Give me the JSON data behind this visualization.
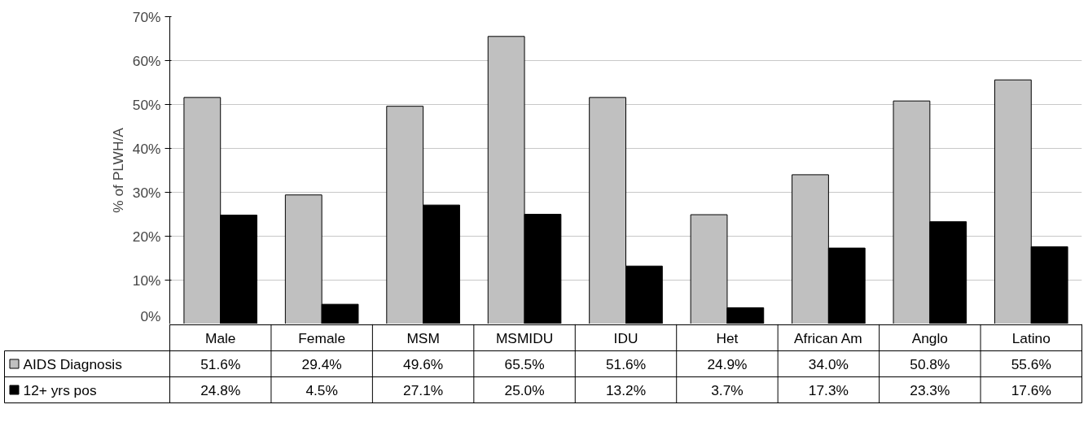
{
  "chart_data": {
    "type": "bar",
    "ylabel": "% of PLWH/A",
    "categories": [
      "Male",
      "Female",
      "MSM",
      "MSMIDU",
      "IDU",
      "Het",
      "African Am",
      "Anglo",
      "Latino"
    ],
    "series": [
      {
        "name": "AIDS Diagnosis",
        "color": "#c0c0c0",
        "values": [
          51.6,
          29.4,
          49.6,
          65.5,
          51.6,
          24.9,
          34.0,
          50.8,
          55.6
        ],
        "value_labels": [
          "51.6%",
          "29.4%",
          "49.6%",
          "65.5%",
          "51.6%",
          "24.9%",
          "34.0%",
          "50.8%",
          "55.6%"
        ]
      },
      {
        "name": "12+ yrs pos",
        "color": "#000000",
        "values": [
          24.8,
          4.5,
          27.1,
          25.0,
          13.2,
          3.7,
          17.3,
          23.3,
          17.6
        ],
        "value_labels": [
          "24.8%",
          "4.5%",
          "27.1%",
          "25.0%",
          "13.2%",
          "3.7%",
          "17.3%",
          "23.3%",
          "17.6%"
        ]
      }
    ],
    "ylim": [
      0,
      70
    ],
    "yticks": [
      {
        "value": 0,
        "label": "0%"
      },
      {
        "value": 10,
        "label": "10%"
      },
      {
        "value": 20,
        "label": "20%"
      },
      {
        "value": 30,
        "label": "30%"
      },
      {
        "value": 40,
        "label": "40%"
      },
      {
        "value": 50,
        "label": "50%"
      },
      {
        "value": 60,
        "label": "60%"
      },
      {
        "value": 70,
        "label": "70%"
      }
    ],
    "grid": "y",
    "legend": "bottom left"
  }
}
